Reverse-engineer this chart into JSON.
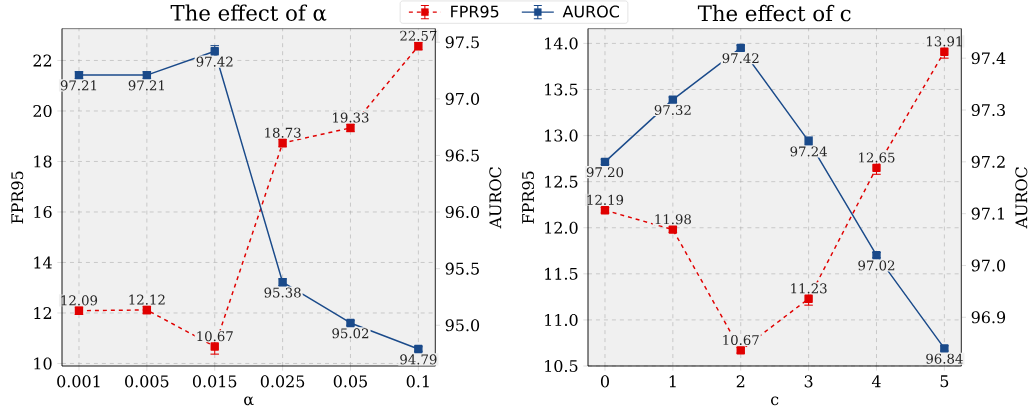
{
  "chart_data": [
    {
      "type": "line",
      "title": "The effect of α",
      "xlabel": "α",
      "ylabel": "FPR95",
      "y2label": "AUROC",
      "categories": [
        "0.001",
        "0.005",
        "0.015",
        "0.025",
        "0.05",
        "0.1"
      ],
      "series": [
        {
          "name": "FPR95",
          "color": "#e00000",
          "axis": "y",
          "line_style": "dashed",
          "values": [
            12.09,
            12.12,
            10.67,
            18.73,
            19.33,
            22.57
          ],
          "errors": [
            0.15,
            0.15,
            0.3,
            0.15,
            0.15,
            0.15
          ],
          "value_labels": [
            "12.09",
            "12.12",
            "10.67",
            "18.73",
            "19.33",
            "22.57"
          ]
        },
        {
          "name": "AUROC",
          "color": "#1a4a8a",
          "axis": "y2",
          "line_style": "solid",
          "values": [
            97.21,
            97.21,
            97.42,
            95.38,
            95.02,
            94.79
          ],
          "errors": [
            0.03,
            0.03,
            0.05,
            0.03,
            0.02,
            0.02
          ],
          "value_labels": [
            "97.21",
            "97.21",
            "97.42",
            "95.38",
            "95.02",
            "94.79"
          ]
        }
      ],
      "ylim": [
        9.9,
        23.26
      ],
      "yticks": [
        10,
        12,
        14,
        16,
        18,
        20,
        22
      ],
      "y2lim": [
        94.64,
        97.62
      ],
      "y2ticks": [
        {
          "value": 95,
          "label": "95.0"
        },
        95.5,
        {
          "value": 96,
          "label": "96.0"
        },
        96.5,
        {
          "value": 97,
          "label": "97.0"
        },
        97.5
      ],
      "grid": true,
      "marker": "square",
      "legend": "top"
    },
    {
      "type": "line",
      "title": "The effect of c",
      "xlabel": "c",
      "ylabel": "FPR95",
      "y2label": "AUROC",
      "categories": [
        "0",
        "1",
        "2",
        "3",
        "4",
        "5"
      ],
      "series": [
        {
          "color": "#e00000",
          "axis": "y",
          "line_style": "dashed",
          "values": [
            12.19,
            11.98,
            10.67,
            11.23,
            12.65,
            13.91
          ],
          "errors": [
            0.03,
            0.03,
            0.03,
            0.07,
            0.07,
            0.07
          ],
          "value_labels": [
            "12.19",
            "11.98",
            "10.67",
            "11.23",
            "12.65",
            "13.91"
          ]
        },
        {
          "color": "#1a4a8a",
          "axis": "y2",
          "line_style": "solid",
          "values": [
            97.2,
            97.32,
            97.42,
            97.24,
            97.02,
            96.84
          ],
          "errors": [
            0.005,
            0.005,
            0.005,
            0.008,
            0.005,
            0.005
          ],
          "value_labels": [
            "97.20",
            "97.32",
            "97.42",
            "97.24",
            "97.02",
            "96.84"
          ]
        }
      ],
      "ylim": [
        10.5,
        14.16
      ],
      "yticks": [
        10.5,
        {
          "value": 11,
          "label": "11.0"
        },
        11.5,
        {
          "value": 12,
          "label": "12.0"
        },
        12.5,
        {
          "value": 13,
          "label": "13.0"
        },
        13.5,
        {
          "value": 14,
          "label": "14.0"
        }
      ],
      "y2lim": [
        96.806,
        97.457
      ],
      "y2ticks": [
        96.9,
        {
          "value": 97,
          "label": "97.0"
        },
        97.1,
        97.2,
        97.3,
        97.4
      ],
      "grid": true,
      "marker": "square",
      "legend": false
    }
  ]
}
